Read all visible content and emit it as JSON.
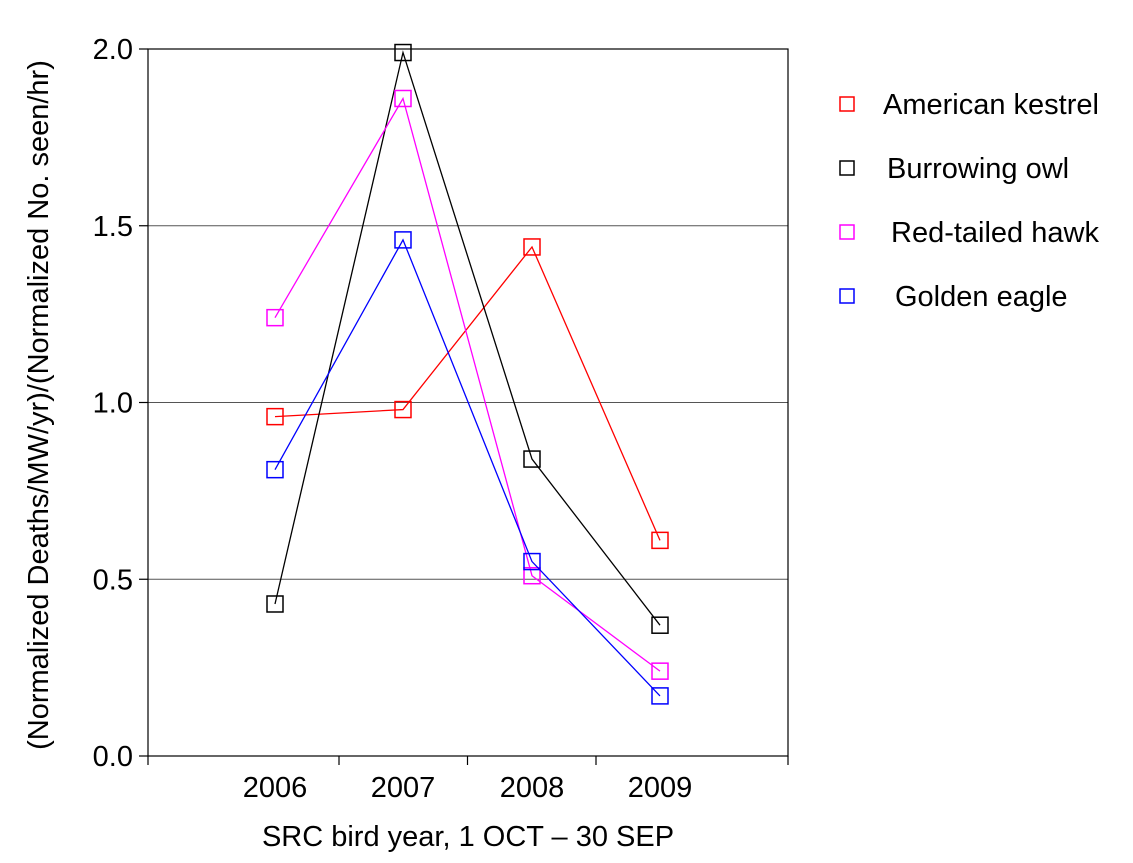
{
  "chart_data": {
    "type": "line",
    "title": "",
    "xlabel": "SRC bird year, 1 OCT – 30 SEP",
    "ylabel": "(Normalized Deaths/MW/yr)/(Normalized No. seen/hr)",
    "categories": [
      "2006",
      "2007",
      "2008",
      "2009"
    ],
    "ylim": [
      0,
      2.0
    ],
    "yticks": [
      "0.0",
      "0.5",
      "1.0",
      "1.5",
      "2.0"
    ],
    "ytick_values": [
      0,
      0.5,
      1.0,
      1.5,
      2.0
    ],
    "grid": "horizontal",
    "legend_position": "right",
    "marker": "open-square",
    "series": [
      {
        "name": "American kestrel",
        "color": "#ff0000",
        "values": [
          0.96,
          0.98,
          1.44,
          0.61
        ]
      },
      {
        "name": "Burrowing owl",
        "color": "#000000",
        "values": [
          0.43,
          1.99,
          0.84,
          0.37
        ]
      },
      {
        "name": "Red-tailed hawk",
        "color": "#ff00ff",
        "values": [
          1.24,
          1.86,
          0.51,
          0.24
        ]
      },
      {
        "name": "Golden eagle",
        "color": "#0000ff",
        "values": [
          0.81,
          1.46,
          0.55,
          0.17
        ]
      }
    ]
  }
}
